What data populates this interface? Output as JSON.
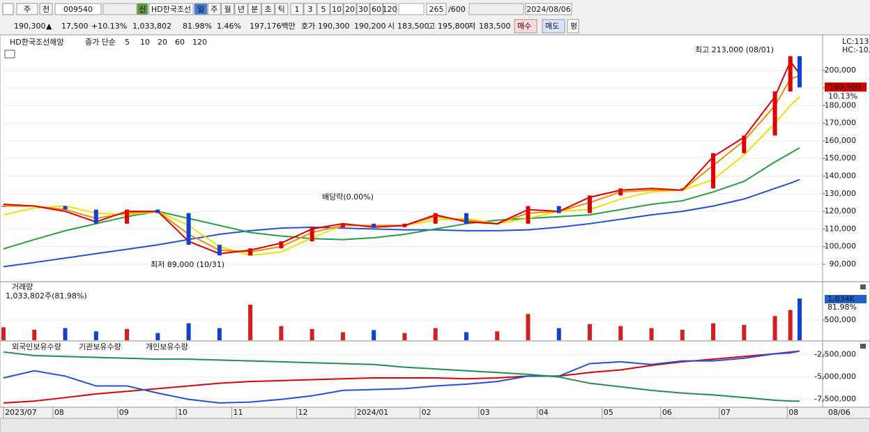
{
  "toolbar": {
    "period": "주",
    "prev": "전",
    "code": "009540",
    "badge": "신",
    "name": "HD한국조선",
    "intervals": [
      "일",
      "주",
      "월",
      "년",
      "분",
      "초",
      "틱"
    ],
    "ticks": [
      "1",
      "3",
      "5",
      "10",
      "20",
      "30",
      "60",
      "120"
    ],
    "count": "265",
    "max": "/600",
    "date": "2024/08/06"
  },
  "quote": [
    "190,300",
    "▲",
    "17,500",
    "+10.13%",
    "1,033,802",
    "81.98%",
    "1.46%",
    "197,176백만",
    "호가",
    "190,300",
    "190,200",
    "시",
    "183,500",
    "고",
    "195,800",
    "저",
    "183,500",
    "매수",
    "매도",
    "평"
  ],
  "footer": {
    "date": "08/06"
  },
  "chart_data": [
    {
      "type": "candlestick",
      "title": "HD한국조선해양",
      "legend_title": "종가 단순",
      "x": [
        0,
        10,
        20,
        30,
        40,
        50,
        60,
        70,
        80,
        90,
        100,
        110,
        120,
        130,
        140,
        150,
        160,
        170,
        180,
        190,
        200,
        210,
        220,
        230,
        240,
        250,
        255,
        258
      ],
      "values": [
        123000,
        123000,
        121000,
        113000,
        121000,
        119000,
        101000,
        95000,
        99000,
        103000,
        111000,
        113000,
        111000,
        113000,
        119000,
        113000,
        113000,
        123000,
        119000,
        129000,
        133000,
        133000,
        133000,
        153000,
        163000,
        188000,
        208000,
        190300
      ],
      "up_color": "#e00000",
      "down_color": "#1040d0",
      "series": [
        {
          "name": "5",
          "color": "#e00000",
          "values": [
            124000,
            123000,
            120000,
            114000,
            120000,
            120000,
            103000,
            96000,
            98000,
            102000,
            110000,
            113000,
            111000,
            112000,
            118000,
            114000,
            113000,
            121000,
            120000,
            128000,
            132000,
            133000,
            132000,
            151000,
            162000,
            185000,
            205000,
            198000
          ]
        },
        {
          "name": "10",
          "color": "#f08c00",
          "values": [
            123000,
            123000,
            121000,
            116000,
            119000,
            120000,
            107000,
            98000,
            97000,
            100000,
            108000,
            112000,
            112000,
            112000,
            117000,
            115000,
            113000,
            119000,
            120000,
            125000,
            131000,
            132000,
            132000,
            146000,
            160000,
            180000,
            195000,
            197000
          ]
        },
        {
          "name": "20",
          "color": "#f0e000",
          "values": [
            118000,
            122000,
            123000,
            119000,
            118000,
            120000,
            112000,
            100000,
            95000,
            97000,
            105000,
            112000,
            112000,
            112000,
            115000,
            116000,
            113000,
            116000,
            120000,
            121000,
            127000,
            131000,
            132000,
            138000,
            152000,
            170000,
            180000,
            185000
          ]
        },
        {
          "name": "60",
          "color": "#20a040",
          "values": [
            98700,
            104000,
            109000,
            113000,
            117000,
            120000,
            116000,
            112000,
            108000,
            106000,
            104500,
            104000,
            105000,
            107000,
            110000,
            113000,
            115000,
            116000,
            117000,
            118000,
            121000,
            124000,
            126000,
            131000,
            137000,
            148000,
            153000,
            156000
          ]
        },
        {
          "name": "120",
          "color": "#2050e0",
          "values": [
            88600,
            91000,
            93500,
            96000,
            98500,
            101000,
            104000,
            107000,
            109000,
            110500,
            111000,
            110500,
            110000,
            109500,
            109500,
            109000,
            109000,
            109500,
            111000,
            113000,
            115500,
            118000,
            120000,
            123000,
            127000,
            133000,
            136000,
            138000
          ]
        }
      ],
      "xlim": [
        0,
        265
      ],
      "ylim": [
        80500,
        218500
      ],
      "yticks": [
        {
          "value": 90000,
          "label": "90,000"
        },
        {
          "value": 100000,
          "label": "100,000"
        },
        {
          "value": 110000,
          "label": "110,000"
        },
        {
          "value": 120000,
          "label": "120,000"
        },
        {
          "value": 130000,
          "label": "130,000"
        },
        {
          "value": 140000,
          "label": "140,000"
        },
        {
          "value": 150000,
          "label": "150,000"
        },
        {
          "value": 160000,
          "label": "160,000"
        },
        {
          "value": 170000,
          "label": "170,000"
        },
        {
          "value": 180000,
          "label": "180,000"
        },
        {
          "value": 190000,
          "label": "190,000"
        },
        {
          "value": 200000,
          "label": "200,000"
        }
      ],
      "annotations": [
        "최고 213,000 (08/01)",
        "최저 89,000 (10/31)",
        "배당락(0.00%)"
      ],
      "side_labels": [
        "LC:113.82",
        "HC:-10.66",
        "190,300",
        "10.13%"
      ]
    },
    {
      "type": "bar",
      "title": "거래량",
      "subtitle": "1,033,802주(81.98%)",
      "x": [
        0,
        10,
        20,
        30,
        40,
        50,
        60,
        70,
        80,
        90,
        100,
        110,
        120,
        130,
        140,
        150,
        160,
        170,
        180,
        190,
        200,
        210,
        220,
        230,
        240,
        250,
        255,
        258
      ],
      "values": [
        320000,
        260000,
        300000,
        220000,
        280000,
        180000,
        420000,
        300000,
        880000,
        350000,
        280000,
        200000,
        250000,
        180000,
        300000,
        200000,
        220000,
        650000,
        300000,
        400000,
        350000,
        300000,
        260000,
        420000,
        380000,
        600000,
        750000,
        1033802
      ],
      "up_color": "#d02020",
      "down_color": "#1040d0",
      "xlim": [
        0,
        265
      ],
      "ylim": [
        0,
        1380000
      ],
      "yticks": [
        {
          "value": 500000,
          "label": "500,000"
        }
      ],
      "side_labels": [
        "1,034K",
        "81.98%"
      ]
    },
    {
      "type": "line",
      "x": [
        0,
        10,
        20,
        30,
        40,
        50,
        60,
        70,
        80,
        90,
        100,
        110,
        120,
        130,
        140,
        150,
        160,
        170,
        180,
        190,
        200,
        210,
        220,
        230,
        240,
        250,
        255,
        258
      ],
      "series": [
        {
          "name": "외국인보유수량",
          "color": "#e00000",
          "values": [
            -7900000,
            -7700000,
            -7300000,
            -6900000,
            -6600000,
            -6300000,
            -6000000,
            -5700000,
            -5500000,
            -5400000,
            -5300000,
            -5200000,
            -5100000,
            -5100000,
            -5100000,
            -5200000,
            -5100000,
            -4900000,
            -4900000,
            -4500000,
            -4200000,
            -3700000,
            -3300000,
            -3000000,
            -2700000,
            -2400000,
            -2200000,
            -2100000
          ]
        },
        {
          "name": "기관보유수량",
          "color": "#2050e0",
          "values": [
            -5100000,
            -4300000,
            -4900000,
            -6000000,
            -6000000,
            -6800000,
            -7500000,
            -7900000,
            -7800000,
            -7500000,
            -7100000,
            -6500000,
            -6400000,
            -6300000,
            -6000000,
            -5800000,
            -5500000,
            -4900000,
            -4900000,
            -3500000,
            -3300000,
            -3600000,
            -3200000,
            -3200000,
            -2900000,
            -2400000,
            -2300000,
            -2100000
          ]
        },
        {
          "name": "개인보유수량",
          "color": "#20904a",
          "values": [
            -2200000,
            -2600000,
            -2700000,
            -2800000,
            -2900000,
            -3000000,
            -3000000,
            -3100000,
            -3200000,
            -3300000,
            -3400000,
            -3500000,
            -3600000,
            -3900000,
            -4100000,
            -4300000,
            -4500000,
            -4700000,
            -5000000,
            -5700000,
            -6100000,
            -6500000,
            -6800000,
            -7000000,
            -7300000,
            -7600000,
            -7700000,
            -7700000
          ]
        }
      ],
      "xlim": [
        0,
        265
      ],
      "ylim": [
        -8300000,
        -1200000
      ],
      "yticks": [
        {
          "value": -2500000,
          "label": "-2,500,000"
        },
        {
          "value": -5000000,
          "label": "-5,000,000"
        },
        {
          "value": -7500000,
          "label": "-7,500,000"
        }
      ],
      "xticks": [
        {
          "value": 0,
          "label": "2023/07"
        },
        {
          "value": 16,
          "label": "08"
        },
        {
          "value": 37,
          "label": "09"
        },
        {
          "value": 56,
          "label": "10"
        },
        {
          "value": 74,
          "label": "11"
        },
        {
          "value": 95,
          "label": "12"
        },
        {
          "value": 114,
          "label": "2024/01"
        },
        {
          "value": 135,
          "label": "02"
        },
        {
          "value": 154,
          "label": "03"
        },
        {
          "value": 173,
          "label": "04"
        },
        {
          "value": 194,
          "label": "05"
        },
        {
          "value": 213,
          "label": "06"
        },
        {
          "value": 232,
          "label": "07"
        },
        {
          "value": 254,
          "label": "08"
        }
      ]
    }
  ]
}
